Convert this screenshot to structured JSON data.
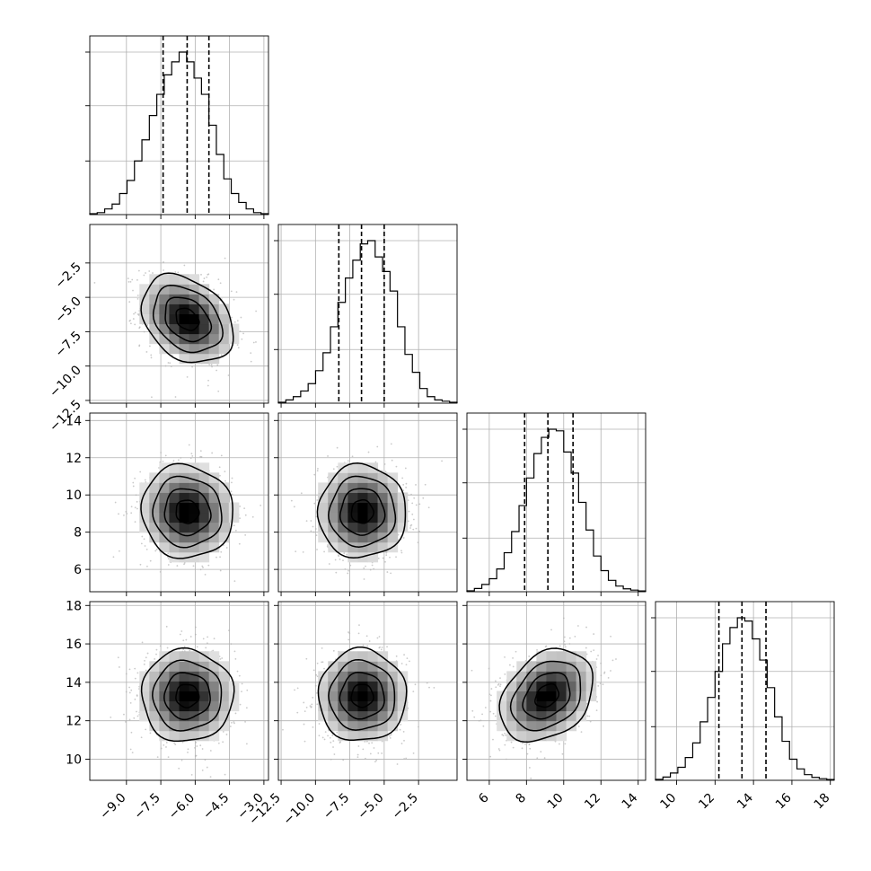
{
  "chart_data": {
    "type": "corner",
    "parameters": [
      {
        "range": [
          -10.6,
          -2.8
        ],
        "ticks": [
          -9.0,
          -7.5,
          -6.0,
          -4.5,
          -3.0
        ],
        "tick_labels": [
          "−9.0",
          "−7.5",
          "−6.0",
          "−4.5",
          "−3.0"
        ],
        "quantiles": [
          -7.4,
          -6.35,
          -5.4
        ],
        "peak": -6.35,
        "sigma": 1.0,
        "hist_bins": [
          0.006,
          0.012,
          0.035,
          0.065,
          0.13,
          0.21,
          0.33,
          0.46,
          0.61,
          0.74,
          0.86,
          0.94,
          1.0,
          0.94,
          0.84,
          0.74,
          0.55,
          0.37,
          0.22,
          0.13,
          0.075,
          0.035,
          0.012,
          0.006
        ],
        "hist_ytick_fractions": [
          0.33,
          0.67,
          1.0
        ]
      },
      {
        "range": [
          -12.7,
          0.3
        ],
        "ticks": [
          -12.5,
          -10.0,
          -7.5,
          -5.0,
          -2.5
        ],
        "tick_labels": [
          "−12.5",
          "−10.0",
          "−7.5",
          "−5.0",
          "−2.5"
        ],
        "quantiles": [
          -8.3,
          -6.65,
          -5.0
        ],
        "peak": -6.6,
        "sigma": 1.6,
        "hist_bins": [
          0.006,
          0.02,
          0.04,
          0.075,
          0.12,
          0.2,
          0.31,
          0.47,
          0.62,
          0.77,
          0.88,
          0.98,
          1.0,
          0.9,
          0.81,
          0.69,
          0.47,
          0.3,
          0.19,
          0.09,
          0.04,
          0.02,
          0.012,
          0.006
        ],
        "hist_ytick_fractions": [
          0.33,
          0.67,
          1.0
        ]
      },
      {
        "range": [
          4.8,
          14.4
        ],
        "ticks": [
          6,
          8,
          10,
          12,
          14
        ],
        "tick_labels": [
          "6",
          "8",
          "10",
          "12",
          "14"
        ],
        "quantiles": [
          7.9,
          9.15,
          10.5
        ],
        "peak": 9.1,
        "sigma": 1.25,
        "hist_bins": [
          0.006,
          0.02,
          0.045,
          0.08,
          0.14,
          0.24,
          0.37,
          0.53,
          0.7,
          0.85,
          0.95,
          1.0,
          0.99,
          0.86,
          0.73,
          0.55,
          0.38,
          0.22,
          0.13,
          0.07,
          0.035,
          0.018,
          0.01,
          0.005
        ],
        "hist_ytick_fractions": [
          0.33,
          0.67,
          1.0
        ]
      },
      {
        "range": [
          8.9,
          18.2
        ],
        "ticks": [
          10,
          12,
          14,
          16,
          18
        ],
        "tick_labels": [
          "10",
          "12",
          "14",
          "16",
          "18"
        ],
        "quantiles": [
          12.2,
          13.4,
          14.65
        ],
        "peak": 13.3,
        "sigma": 1.2,
        "hist_bins": [
          0.006,
          0.02,
          0.045,
          0.08,
          0.14,
          0.23,
          0.36,
          0.51,
          0.67,
          0.84,
          0.94,
          1.0,
          0.98,
          0.87,
          0.74,
          0.57,
          0.39,
          0.24,
          0.13,
          0.07,
          0.035,
          0.018,
          0.01,
          0.005
        ],
        "hist_ytick_fractions": [
          0.33,
          0.67,
          1.0
        ]
      }
    ],
    "correlations": {
      "1-0": -0.3,
      "2-0": -0.05,
      "2-1": 0.0,
      "3-0": 0.0,
      "3-1": 0.0,
      "3-2": 0.3
    },
    "contour_levels_sigma": [
      0.5,
      1.0,
      1.5,
      2.0
    ],
    "samples_color": "#b4b4b4",
    "density_color": "#000000",
    "grid": true
  }
}
